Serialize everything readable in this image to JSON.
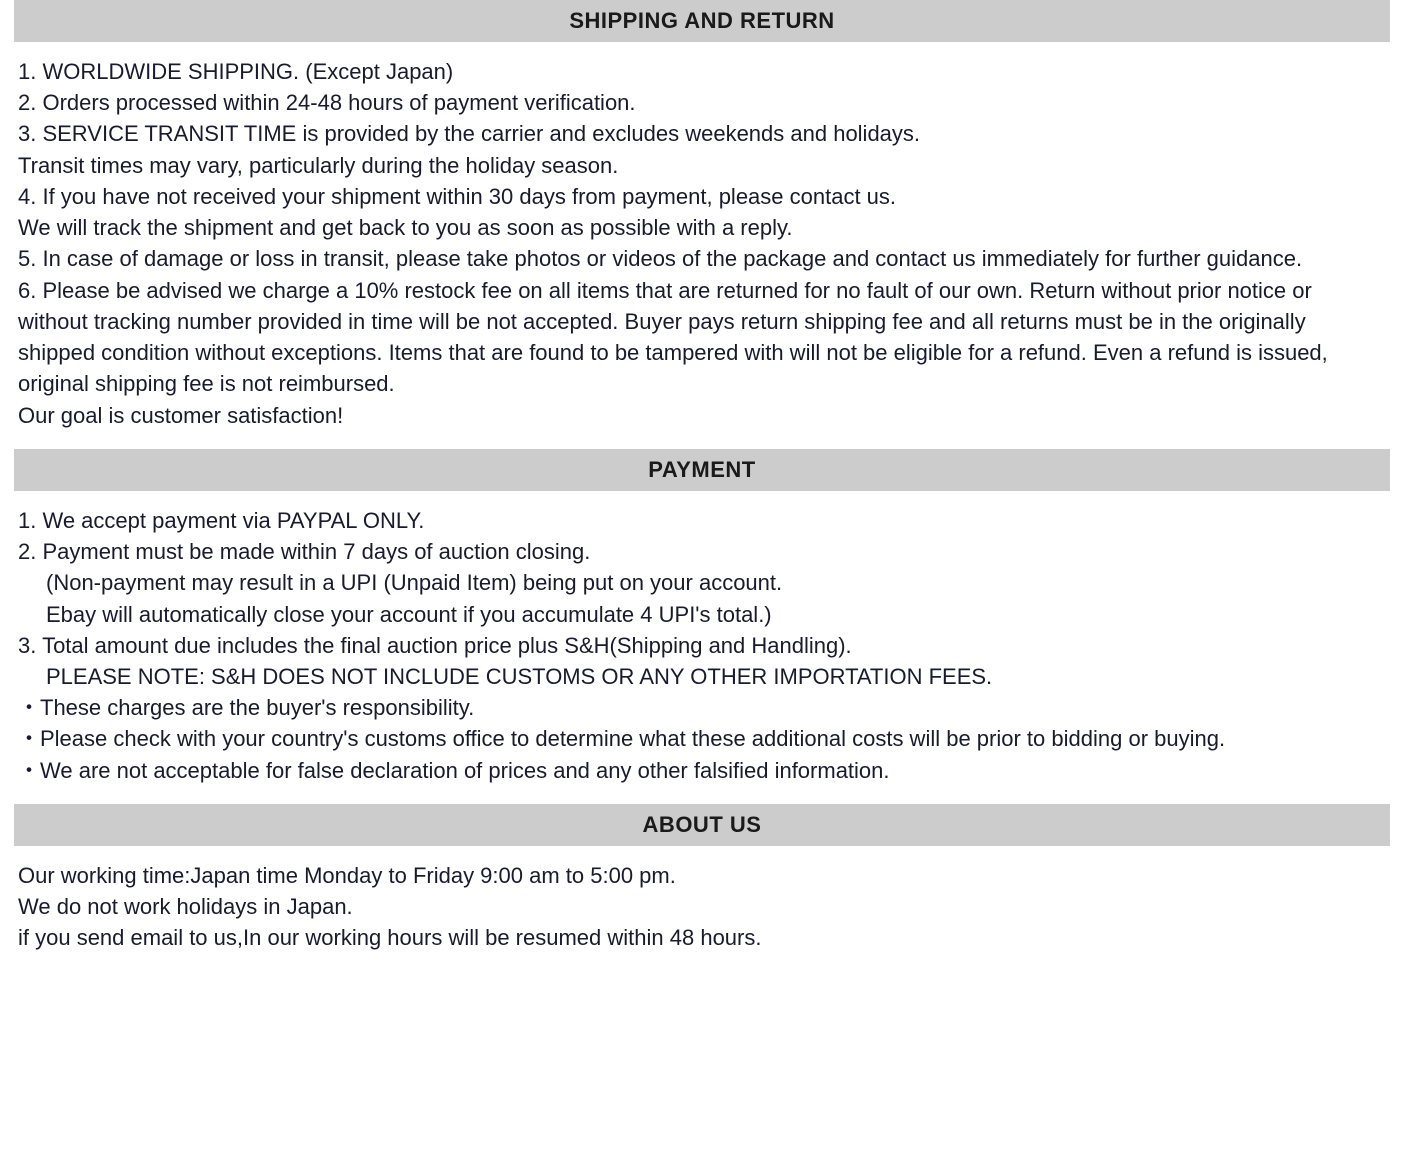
{
  "colors": {
    "header_bg": "#cccccc",
    "header_text": "#1a1a1a",
    "body_text": "#1a1a2e",
    "page_bg": "#ffffff"
  },
  "typography": {
    "header_fontsize": 22,
    "body_fontsize": 22,
    "header_weight": "bold",
    "font_family": "Verdana, Geneva, Tahoma, sans-serif",
    "line_height": 1.42
  },
  "sections": {
    "shipping": {
      "title": "SHIPPING AND RETURN",
      "lines": [
        "1. WORLDWIDE SHIPPING. (Except Japan)",
        "2. Orders processed within 24-48 hours of payment verification.",
        "3. SERVICE TRANSIT TIME is provided by the carrier and excludes weekends and holidays.",
        "Transit times may vary, particularly during the holiday season.",
        "4. If you have not received your shipment within 30 days from payment, please contact us.",
        "We will track the shipment and get back to you as soon as possible with a reply.",
        "5. In case of damage or loss in transit, please take photos or videos of the package and contact us immediately for further guidance.",
        "6. Please be advised we charge a 10% restock fee on all items that are returned for no fault of our own. Return without prior notice or without tracking number provided in time will be not accepted. Buyer pays return shipping fee and all returns must be in the originally shipped condition without exceptions. Items that are found to be tampered with will not be eligible for a refund. Even a refund is issued, original shipping fee is not reimbursed.",
        "Our goal is customer satisfaction!"
      ]
    },
    "payment": {
      "title": "PAYMENT",
      "lines": [
        "1. We accept payment via PAYPAL ONLY.",
        "2. Payment must be made within 7 days of auction closing."
      ],
      "indented": [
        "(Non-payment may result in a UPI (Unpaid Item) being put on your account.",
        "Ebay will automatically close your account if you accumulate 4 UPI's total.)"
      ],
      "lines2": [
        "3. Total amount due includes the final auction price plus S&H(Shipping and Handling)."
      ],
      "indented2": [
        "PLEASE NOTE: S&H DOES NOT INCLUDE CUSTOMS OR ANY OTHER IMPORTATION FEES."
      ],
      "bullets": [
        "・These charges are the buyer's responsibility.",
        "・Please check with your country's customs office to determine what these additional costs will be prior to bidding or buying.",
        "・We are not acceptable for false declaration of prices and any other falsified information."
      ]
    },
    "about": {
      "title": "ABOUT US",
      "lines": [
        "Our working time:Japan time Monday to Friday 9:00 am to 5:00 pm.",
        "We do not work holidays in Japan.",
        "if you send email to us,In our working hours will be resumed within 48 hours."
      ]
    }
  }
}
